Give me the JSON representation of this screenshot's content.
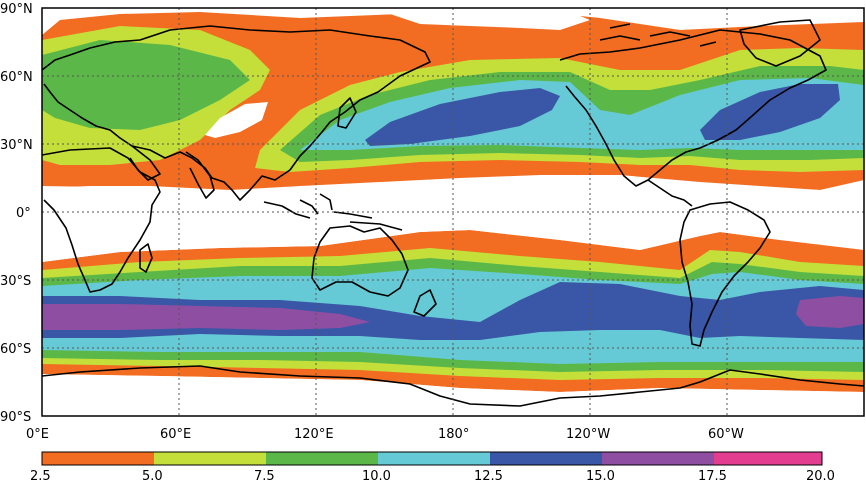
{
  "map": {
    "lat_labels": [
      "90°N",
      "60°N",
      "30°N",
      "0°",
      "30°S",
      "60°S",
      "90°S"
    ],
    "lon_labels": [
      "0°E",
      "60°E",
      "120°E",
      "180°",
      "120°W",
      "60°W"
    ],
    "grid": true
  },
  "colorbar": {
    "ticks": [
      "2.5",
      "5.0",
      "7.5",
      "10.0",
      "12.5",
      "15.0",
      "17.5",
      "20.0"
    ],
    "colors": [
      "#f26d21",
      "#c4df3a",
      "#5bb848",
      "#66cad6",
      "#3a56a6",
      "#8e4fa3",
      "#e23d8f"
    ]
  },
  "colors": {
    "background": "#ffffff",
    "coastline": "#000000",
    "band_orange": "#f26d21",
    "band_yellowgreen": "#c4df3a",
    "band_green": "#5bb848",
    "band_cyan": "#66cad6",
    "band_blue": "#3a56a6",
    "band_purple": "#8e4fa3"
  }
}
